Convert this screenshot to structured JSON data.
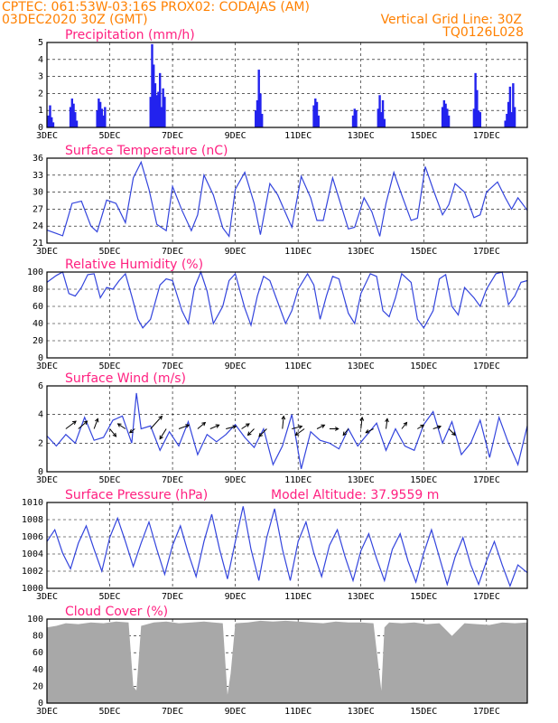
{
  "header": {
    "left_line1": "CPTEC:   061:53W-03:16S   PROX02: CODAJAS (AM)",
    "left_line2": "03DEC2020 30Z (GMT)",
    "right_line2": "Vertical Grid Line: 30Z",
    "right_line3": "TQ0126L028"
  },
  "colors": {
    "header": "#ff8000",
    "panel_title": "#ff2080",
    "line": "#3344dd",
    "bar": "#2222ee",
    "cloud": "#a8a8a8",
    "arrow": "#000000"
  },
  "chart_data": [
    {
      "type": "bar",
      "title": "Precipitation (mm/h)",
      "ylim": [
        0,
        5
      ],
      "yticks": [
        "0",
        "1",
        "2",
        "3",
        "4",
        "5"
      ],
      "xticks": [
        "3DEC",
        "5DEC",
        "7DEC",
        "9DEC",
        "11DEC",
        "13DEC",
        "15DEC",
        "17DEC"
      ],
      "x_range_days": [
        3,
        18.3
      ],
      "x": [
        3.05,
        3.1,
        3.15,
        3.2,
        3.75,
        3.8,
        3.85,
        3.9,
        3.95,
        4.6,
        4.65,
        4.7,
        4.75,
        4.8,
        4.85,
        6.3,
        6.35,
        6.4,
        6.45,
        6.5,
        6.55,
        6.6,
        6.65,
        6.7,
        6.75,
        9.65,
        9.7,
        9.75,
        9.8,
        9.85,
        11.5,
        11.55,
        11.6,
        11.65,
        12.75,
        12.8,
        12.85,
        13.55,
        13.6,
        13.65,
        13.7,
        13.75,
        15.6,
        15.65,
        15.7,
        15.75,
        15.8,
        16.6,
        16.65,
        16.7,
        16.75,
        16.8,
        17.6,
        17.65,
        17.7,
        17.75,
        17.8,
        17.85,
        17.9
      ],
      "values": [
        0.7,
        1.3,
        0.6,
        0.3,
        1.2,
        1.7,
        1.4,
        0.9,
        0.4,
        1.0,
        1.7,
        1.5,
        1.1,
        0.7,
        1.2,
        1.8,
        4.9,
        3.7,
        2.6,
        1.9,
        2.1,
        3.2,
        1.2,
        2.3,
        1.8,
        1.0,
        1.6,
        3.4,
        2.0,
        0.8,
        1.3,
        1.7,
        1.5,
        0.7,
        0.7,
        1.1,
        1.0,
        1.1,
        1.9,
        0.9,
        1.6,
        0.5,
        1.2,
        1.6,
        1.4,
        1.1,
        0.7,
        1.1,
        3.2,
        2.2,
        1.0,
        0.9,
        0.4,
        0.8,
        1.5,
        2.4,
        0.9,
        2.6,
        1.2
      ]
    },
    {
      "type": "line",
      "title": "Surface Temperature (nC)",
      "ylim": [
        21,
        36
      ],
      "yticks": [
        "21",
        "24",
        "27",
        "30",
        "33",
        "36"
      ],
      "xticks": [
        "3DEC",
        "5DEC",
        "7DEC",
        "9DEC",
        "11DEC",
        "13DEC",
        "15DEC",
        "17DEC"
      ],
      "x": [
        3.0,
        3.3,
        3.5,
        3.8,
        4.1,
        4.4,
        4.6,
        4.9,
        5.2,
        5.5,
        5.75,
        6.0,
        6.25,
        6.5,
        6.8,
        7.0,
        7.3,
        7.6,
        7.8,
        8.0,
        8.3,
        8.6,
        8.8,
        9.0,
        9.3,
        9.6,
        9.8,
        10.1,
        10.35,
        10.6,
        10.8,
        11.1,
        11.4,
        11.6,
        11.8,
        12.1,
        12.35,
        12.6,
        12.8,
        13.1,
        13.35,
        13.6,
        13.8,
        14.05,
        14.3,
        14.6,
        14.8,
        15.05,
        15.3,
        15.6,
        15.8,
        16.0,
        16.3,
        16.6,
        16.8,
        17.0,
        17.35,
        17.6,
        17.8,
        18.0,
        18.3
      ],
      "values": [
        23.3,
        22.7,
        22.3,
        28.0,
        28.4,
        24.0,
        23.0,
        28.6,
        28.0,
        24.6,
        32.5,
        35.3,
        30.5,
        24.3,
        23.2,
        31.0,
        26.8,
        23.2,
        26.0,
        33.0,
        29.5,
        23.7,
        22.2,
        30.5,
        33.5,
        28.0,
        22.5,
        31.5,
        29.5,
        26.3,
        23.8,
        32.8,
        29.0,
        25.0,
        25.0,
        32.5,
        28.0,
        23.5,
        23.8,
        29.0,
        26.5,
        22.2,
        28.0,
        33.5,
        29.5,
        25.0,
        25.4,
        34.5,
        30.5,
        26.0,
        27.8,
        31.5,
        30.0,
        25.5,
        26.0,
        30.0,
        31.8,
        29.0,
        27.0,
        29.0,
        26.8
      ]
    },
    {
      "type": "line",
      "title": "Relative Humidity (%)",
      "ylim": [
        0,
        100
      ],
      "yticks": [
        "0",
        "20",
        "40",
        "60",
        "80",
        "100"
      ],
      "xticks": [
        "3DEC",
        "5DEC",
        "7DEC",
        "9DEC",
        "11DEC",
        "13DEC",
        "15DEC",
        "17DEC"
      ],
      "x": [
        3.0,
        3.3,
        3.5,
        3.7,
        3.9,
        4.1,
        4.3,
        4.5,
        4.7,
        4.9,
        5.1,
        5.3,
        5.5,
        5.7,
        5.9,
        6.05,
        6.3,
        6.6,
        6.8,
        7.0,
        7.3,
        7.5,
        7.7,
        7.9,
        8.1,
        8.3,
        8.6,
        8.8,
        9.0,
        9.3,
        9.5,
        9.7,
        9.9,
        10.1,
        10.3,
        10.6,
        10.8,
        11.0,
        11.3,
        11.5,
        11.7,
        11.9,
        12.1,
        12.3,
        12.6,
        12.8,
        13.0,
        13.3,
        13.5,
        13.7,
        13.9,
        14.1,
        14.3,
        14.6,
        14.8,
        15.0,
        15.3,
        15.5,
        15.7,
        15.9,
        16.1,
        16.3,
        16.6,
        16.8,
        17.0,
        17.3,
        17.5,
        17.7,
        17.9,
        18.1,
        18.3
      ],
      "values": [
        88,
        96,
        100,
        75,
        72,
        82,
        97,
        98,
        70,
        82,
        80,
        90,
        98,
        72,
        45,
        35,
        45,
        85,
        92,
        90,
        55,
        40,
        82,
        100,
        78,
        40,
        60,
        90,
        98,
        58,
        38,
        72,
        95,
        90,
        70,
        40,
        55,
        80,
        98,
        85,
        45,
        72,
        95,
        92,
        52,
        40,
        75,
        98,
        95,
        55,
        48,
        70,
        98,
        88,
        45,
        35,
        55,
        92,
        97,
        60,
        50,
        82,
        70,
        60,
        80,
        98,
        100,
        62,
        72,
        88,
        90
      ]
    },
    {
      "type": "line",
      "title": "Surface Wind (m/s)",
      "ylim": [
        0,
        6
      ],
      "yticks": [
        "0",
        "2",
        "4",
        "6"
      ],
      "xticks": [
        "3DEC",
        "5DEC",
        "7DEC",
        "9DEC",
        "11DEC",
        "13DEC",
        "15DEC",
        "17DEC"
      ],
      "x": [
        3.0,
        3.3,
        3.6,
        3.9,
        4.2,
        4.5,
        4.8,
        5.1,
        5.4,
        5.7,
        5.85,
        6.0,
        6.3,
        6.6,
        6.9,
        7.2,
        7.5,
        7.8,
        8.1,
        8.4,
        8.7,
        9.0,
        9.3,
        9.6,
        9.9,
        10.2,
        10.5,
        10.8,
        11.1,
        11.4,
        11.7,
        12.0,
        12.3,
        12.6,
        12.9,
        13.2,
        13.5,
        13.8,
        14.1,
        14.4,
        14.7,
        15.0,
        15.3,
        15.6,
        15.9,
        16.2,
        16.5,
        16.8,
        17.1,
        17.4,
        17.7,
        18.0,
        18.3
      ],
      "values": [
        2.5,
        1.8,
        2.6,
        2.0,
        3.8,
        2.2,
        2.4,
        3.6,
        3.9,
        2.0,
        5.5,
        3.0,
        3.2,
        1.5,
        2.8,
        1.8,
        3.5,
        1.2,
        2.6,
        2.1,
        2.6,
        3.3,
        2.4,
        1.7,
        3.0,
        0.5,
        1.8,
        4.0,
        0.2,
        2.8,
        2.2,
        2.0,
        1.6,
        3.0,
        1.8,
        2.6,
        3.4,
        1.5,
        3.0,
        1.8,
        1.5,
        3.3,
        4.2,
        2.0,
        3.5,
        1.2,
        2.0,
        3.6,
        1.0,
        3.8,
        2.0,
        0.5,
        3.2
      ],
      "arrows_uv": [
        [
          0.8,
          0.6
        ],
        [
          0.7,
          0.6
        ],
        [
          0.3,
          0.8
        ],
        [
          0.5,
          -0.6
        ],
        [
          -0.6,
          0.4
        ],
        [
          -0.4,
          -0.3
        ],
        [
          0.9,
          1.0
        ],
        [
          -0.5,
          -0.8
        ],
        [
          0.8,
          0.3
        ],
        [
          0.6,
          0.5
        ],
        [
          0.7,
          0.3
        ],
        [
          0.8,
          0.2
        ],
        [
          0.6,
          0.4
        ],
        [
          -0.5,
          -0.5
        ],
        [
          -0.6,
          -0.6
        ],
        [
          0.1,
          1.0
        ],
        [
          0.8,
          0.2
        ],
        [
          -0.7,
          -0.5
        ],
        [
          0.6,
          0.3
        ],
        [
          0.7,
          0.0
        ],
        [
          -0.4,
          -0.5
        ],
        [
          0.1,
          0.9
        ],
        [
          -0.6,
          -0.3
        ],
        [
          0.1,
          0.8
        ],
        [
          0.4,
          0.5
        ],
        [
          0.5,
          0.3
        ],
        [
          0.6,
          0.2
        ],
        [
          0.5,
          -0.5
        ]
      ],
      "arrows_x": [
        3.6,
        4.0,
        4.5,
        5.0,
        5.5,
        5.8,
        6.3,
        6.8,
        7.2,
        7.8,
        8.2,
        8.7,
        9.2,
        9.6,
        10.0,
        10.5,
        10.8,
        11.2,
        11.6,
        12.0,
        12.6,
        13.0,
        13.4,
        13.8,
        14.3,
        14.8,
        15.3,
        15.8
      ]
    },
    {
      "type": "line",
      "title": "Surface Pressure (hPa)",
      "subtitle": "Model Altitude: 37.9559 m",
      "ylim": [
        999,
        1010
      ],
      "yticks": [
        "1000",
        "1002",
        "1004",
        "1006",
        "1008",
        "1010"
      ],
      "xticks": [
        "3DEC",
        "5DEC",
        "7DEC",
        "9DEC",
        "11DEC",
        "13DEC",
        "15DEC",
        "17DEC"
      ],
      "x": [
        3.0,
        3.25,
        3.5,
        3.75,
        4.0,
        4.25,
        4.5,
        4.75,
        5.0,
        5.25,
        5.5,
        5.75,
        6.0,
        6.25,
        6.5,
        6.75,
        7.0,
        7.25,
        7.5,
        7.75,
        8.0,
        8.25,
        8.5,
        8.75,
        9.0,
        9.25,
        9.5,
        9.75,
        10.0,
        10.25,
        10.5,
        10.75,
        11.0,
        11.25,
        11.5,
        11.75,
        12.0,
        12.25,
        12.5,
        12.75,
        13.0,
        13.25,
        13.5,
        13.75,
        14.0,
        14.25,
        14.5,
        14.75,
        15.0,
        15.25,
        15.5,
        15.75,
        16.0,
        16.25,
        16.5,
        16.75,
        17.0,
        17.25,
        17.5,
        17.75,
        18.0,
        18.3
      ],
      "values": [
        1005.0,
        1006.5,
        1003.5,
        1001.5,
        1004.8,
        1007.0,
        1004.0,
        1001.2,
        1005.5,
        1008.0,
        1005.0,
        1001.8,
        1004.8,
        1007.5,
        1004.0,
        1000.8,
        1004.5,
        1007.0,
        1003.5,
        1000.5,
        1005.0,
        1008.5,
        1004.0,
        1000.2,
        1005.0,
        1009.5,
        1004.0,
        1000.0,
        1005.5,
        1009.2,
        1004.0,
        1000.0,
        1005.0,
        1007.5,
        1003.5,
        1000.5,
        1004.5,
        1006.5,
        1003.0,
        1000.0,
        1003.8,
        1006.0,
        1002.8,
        1000.0,
        1004.0,
        1006.0,
        1002.5,
        999.8,
        1003.5,
        1006.5,
        1003.0,
        999.5,
        1003.0,
        1005.5,
        1002.0,
        999.5,
        1002.5,
        1005.0,
        1002.0,
        999.3,
        1002.0,
        1001.0
      ]
    },
    {
      "type": "area",
      "title": "Cloud Cover (%)",
      "ylim": [
        0,
        100
      ],
      "yticks": [
        "0",
        "20",
        "40",
        "60",
        "80",
        "100"
      ],
      "xticks": [
        "3DEC",
        "5DEC",
        "7DEC",
        "9DEC",
        "11DEC",
        "13DEC",
        "15DEC",
        "17DEC"
      ],
      "x": [
        3.0,
        3.3,
        3.6,
        4.0,
        4.4,
        4.8,
        5.2,
        5.6,
        5.75,
        5.85,
        6.0,
        6.4,
        6.8,
        7.2,
        7.6,
        8.0,
        8.3,
        8.6,
        8.75,
        8.85,
        9.0,
        9.4,
        9.8,
        10.2,
        10.6,
        11.0,
        11.4,
        11.8,
        12.2,
        12.6,
        13.0,
        13.4,
        13.65,
        13.75,
        13.9,
        14.3,
        14.7,
        15.1,
        15.5,
        15.9,
        16.3,
        16.7,
        17.1,
        17.5,
        17.9,
        18.3
      ],
      "values": [
        90,
        92,
        95,
        94,
        96,
        95,
        97,
        96,
        20,
        15,
        92,
        96,
        97,
        95,
        96,
        97,
        96,
        95,
        10,
        35,
        95,
        96,
        98,
        97,
        98,
        97,
        96,
        95,
        97,
        96,
        96,
        95,
        15,
        90,
        96,
        95,
        96,
        94,
        95,
        80,
        95,
        94,
        93,
        96,
        95,
        96
      ]
    }
  ]
}
